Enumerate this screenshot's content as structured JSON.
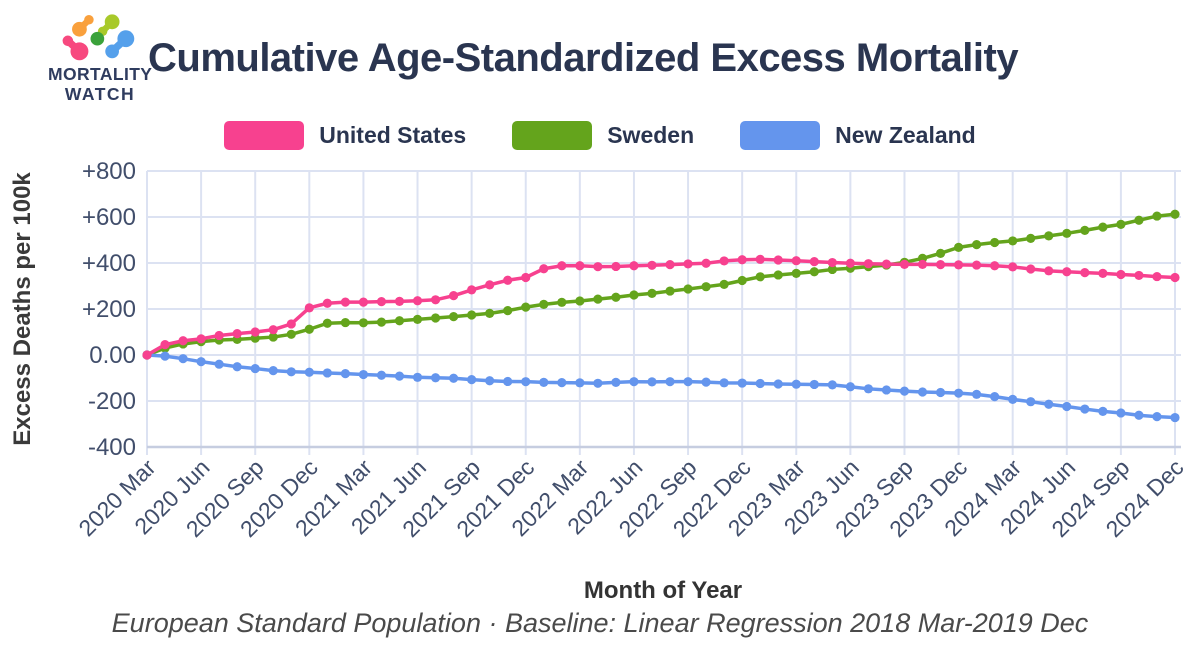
{
  "logo": {
    "title_line1": "MORTALITY",
    "title_line2": "WATCH"
  },
  "header": {
    "title": "Cumulative Age-Standardized Excess Mortality"
  },
  "footer": {
    "note": "European Standard Population · Baseline: Linear Regression 2018 Mar-2019 Dec"
  },
  "chart_data": {
    "type": "line",
    "title": "Cumulative Age-Standardized Excess Mortality",
    "xlabel": "Month of Year",
    "ylabel": "Excess Deaths per 100k",
    "ylim": [
      -400,
      800
    ],
    "grid": true,
    "legend_position": "top",
    "grid_color": "#dce2f2",
    "axis_color": "#c6cde0",
    "tick_color": "#414e6b",
    "xtick_every": 3,
    "yticks": [
      {
        "value": 800,
        "label": "+800"
      },
      {
        "value": 600,
        "label": "+600"
      },
      {
        "value": 400,
        "label": "+400"
      },
      {
        "value": 200,
        "label": "+200"
      },
      {
        "value": 0,
        "label": "0.00"
      },
      {
        "value": -200,
        "label": "-200"
      },
      {
        "value": -400,
        "label": "-400"
      }
    ],
    "categories": [
      "2020 Mar",
      "2020 Apr",
      "2020 May",
      "2020 Jun",
      "2020 Jul",
      "2020 Aug",
      "2020 Sep",
      "2020 Oct",
      "2020 Nov",
      "2020 Dec",
      "2021 Jan",
      "2021 Feb",
      "2021 Mar",
      "2021 Apr",
      "2021 May",
      "2021 Jun",
      "2021 Jul",
      "2021 Aug",
      "2021 Sep",
      "2021 Oct",
      "2021 Nov",
      "2021 Dec",
      "2022 Jan",
      "2022 Feb",
      "2022 Mar",
      "2022 Apr",
      "2022 May",
      "2022 Jun",
      "2022 Jul",
      "2022 Aug",
      "2022 Sep",
      "2022 Oct",
      "2022 Nov",
      "2022 Dec",
      "2023 Jan",
      "2023 Feb",
      "2023 Mar",
      "2023 Apr",
      "2023 May",
      "2023 Jun",
      "2023 Jul",
      "2023 Aug",
      "2023 Sep",
      "2023 Oct",
      "2023 Nov",
      "2023 Dec",
      "2024 Jan",
      "2024 Feb",
      "2024 Mar",
      "2024 Apr",
      "2024 May",
      "2024 Jun",
      "2024 Jul",
      "2024 Aug",
      "2024 Sep",
      "2024 Oct",
      "2024 Nov",
      "2024 Dec"
    ],
    "series": [
      {
        "name": "United States",
        "color": "#f7418f",
        "values": [
          0,
          45,
          62,
          70,
          85,
          93,
          100,
          110,
          135,
          205,
          225,
          230,
          230,
          232,
          233,
          236,
          240,
          258,
          283,
          305,
          325,
          337,
          375,
          388,
          388,
          384,
          385,
          388,
          390,
          393,
          396,
          399,
          409,
          414,
          416,
          413,
          410,
          406,
          402,
          399,
          397,
          395,
          394,
          394,
          393,
          392,
          391,
          388,
          383,
          374,
          366,
          362,
          358,
          355,
          350,
          346,
          341,
          337
        ]
      },
      {
        "name": "Sweden",
        "color": "#64a41c",
        "values": [
          0,
          30,
          48,
          58,
          65,
          68,
          73,
          78,
          90,
          112,
          138,
          141,
          140,
          143,
          149,
          155,
          161,
          167,
          174,
          181,
          193,
          208,
          220,
          229,
          235,
          243,
          251,
          261,
          268,
          278,
          287,
          297,
          307,
          324,
          340,
          348,
          355,
          362,
          372,
          377,
          384,
          391,
          403,
          420,
          442,
          468,
          480,
          489,
          496,
          507,
          518,
          529,
          542,
          556,
          568,
          586,
          604,
          612
        ]
      },
      {
        "name": "New Zealand",
        "color": "#6495ed",
        "values": [
          0,
          -5,
          -16,
          -29,
          -40,
          -51,
          -59,
          -68,
          -73,
          -75,
          -78,
          -81,
          -85,
          -88,
          -92,
          -97,
          -99,
          -101,
          -107,
          -112,
          -115,
          -116,
          -119,
          -120,
          -121,
          -123,
          -119,
          -116,
          -117,
          -116,
          -116,
          -118,
          -121,
          -122,
          -124,
          -126,
          -127,
          -128,
          -130,
          -138,
          -147,
          -152,
          -157,
          -161,
          -163,
          -166,
          -171,
          -181,
          -193,
          -203,
          -214,
          -224,
          -235,
          -245,
          -252,
          -262,
          -268,
          -272
        ]
      }
    ]
  }
}
